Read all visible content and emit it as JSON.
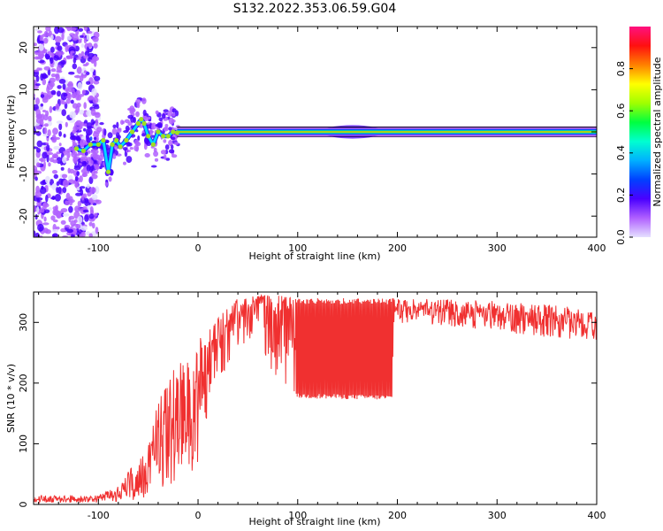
{
  "title": "S132.2022.353.06.59.G04",
  "colors": {
    "snr_line": "#f03030",
    "ridge": "#a0e020",
    "center_line": "#000000",
    "colorbar_stops": [
      "#e5e0ff",
      "#b060ff",
      "#4a00ff",
      "#0040ff",
      "#00b0ff",
      "#00ffd0",
      "#00ff40",
      "#a0ff00",
      "#ffff00",
      "#ff8000",
      "#ff1010",
      "#ff1080"
    ]
  },
  "chart_data": [
    {
      "type": "heatmap",
      "xlabel": "Height of straight line (km)",
      "ylabel": "Frequency (Hz)",
      "xlim": [
        -165,
        400
      ],
      "ylim": [
        -25,
        25
      ],
      "xticks": [
        -100,
        0,
        100,
        200,
        300,
        400
      ],
      "yticks": [
        -20,
        -10,
        0,
        10,
        20
      ],
      "colorbar": {
        "label": "Normalized spectral amplitude",
        "range": [
          0,
          1
        ],
        "ticks": [
          0.0,
          0.2,
          0.4,
          0.6,
          0.8
        ]
      },
      "ridge": {
        "x": [
          -122,
          -115,
          -108,
          -100,
          -95,
          -90,
          -86,
          -82,
          -78,
          -72,
          -66,
          -60,
          -57,
          -54,
          -50,
          -45,
          -40,
          -35,
          -30,
          -25,
          -21
        ],
        "frequency": [
          -4,
          -4.5,
          -3,
          -3,
          -2,
          -9.5,
          -3,
          -2,
          -3.5,
          -2,
          0,
          2,
          3,
          2,
          -1,
          -3,
          0,
          -1,
          -1,
          0,
          -0.2
        ]
      },
      "carrier": {
        "frequency": 0,
        "x_start": -21,
        "x_end": 400
      }
    },
    {
      "type": "line",
      "xlabel": "Height of straight line (km)",
      "ylabel": "SNR (10 * v/v)",
      "xlim": [
        -165,
        400
      ],
      "ylim": [
        0,
        350
      ],
      "xticks": [
        -100,
        0,
        100,
        200,
        300,
        400
      ],
      "yticks": [
        0,
        100,
        200,
        300
      ],
      "envelope": {
        "x": [
          -165,
          -100,
          -80,
          -60,
          -40,
          -20,
          0,
          20,
          40,
          60,
          80,
          97,
          97.5,
          195,
          196,
          240,
          300,
          350,
          400
        ],
        "upper": [
          15,
          15,
          30,
          80,
          170,
          240,
          270,
          310,
          340,
          345,
          345,
          340,
          340,
          340,
          340,
          340,
          335,
          330,
          320
        ],
        "lower": [
          3,
          3,
          5,
          8,
          20,
          40,
          60,
          200,
          260,
          270,
          200,
          180,
          175,
          172,
          300,
          295,
          285,
          275,
          270
        ],
        "mean": [
          9,
          9,
          15,
          35,
          90,
          150,
          190,
          270,
          320,
          330,
          320,
          300,
          260,
          260,
          320,
          318,
          310,
          300,
          295
        ]
      }
    }
  ]
}
